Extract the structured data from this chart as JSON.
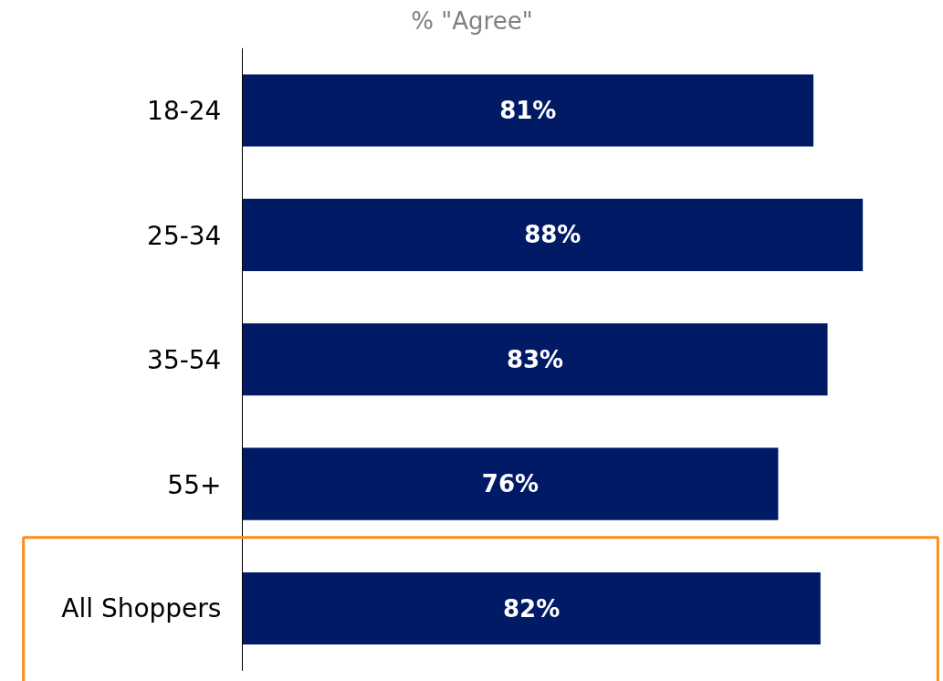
{
  "chart_data": {
    "type": "bar",
    "orientation": "horizontal",
    "title": "% \"Agree\"",
    "categories": [
      "18-24",
      "25-34",
      "35-54",
      "55+",
      "All Shoppers"
    ],
    "values": [
      81,
      88,
      83,
      76,
      82
    ],
    "value_labels": [
      "81%",
      "88%",
      "83%",
      "76%",
      "82%"
    ],
    "color": "#001a66"
  }
}
